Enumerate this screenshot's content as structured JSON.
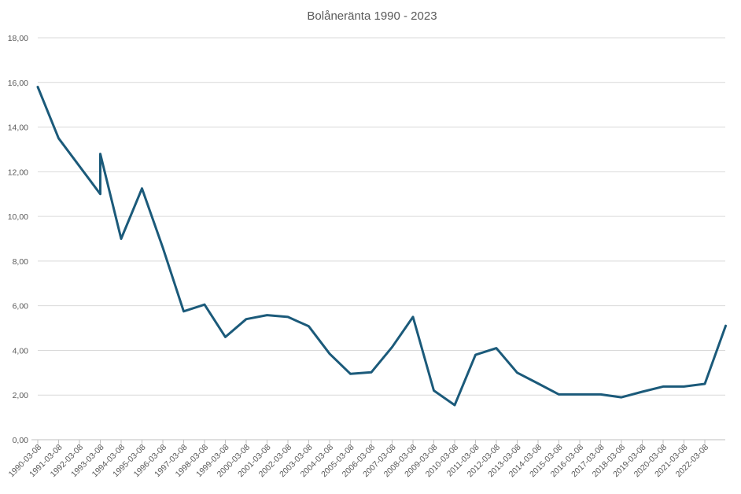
{
  "chart_data": {
    "type": "line",
    "title": "Bolåneränta 1990 - 2023",
    "xlabel": "",
    "ylabel": "",
    "ylim": [
      0,
      18
    ],
    "y_ticks": [
      "0,00",
      "2,00",
      "4,00",
      "6,00",
      "8,00",
      "10,00",
      "12,00",
      "14,00",
      "16,00",
      "18,00"
    ],
    "categories": [
      "1990-03-08",
      "1991-03-08",
      "1992-03-08",
      "1993-03-08",
      "1994-03-08",
      "1995-03-08",
      "1996-03-08",
      "1997-03-08",
      "1998-03-08",
      "1999-03-08",
      "2000-03-08",
      "2001-03-08",
      "2002-03-08",
      "2003-03-08",
      "2004-03-08",
      "2005-03-08",
      "2006-03-08",
      "2007-03-08",
      "2008-03-08",
      "2009-03-08",
      "2010-03-08",
      "2011-03-08",
      "2012-03-08",
      "2013-03-08",
      "2014-03-08",
      "2015-03-08",
      "2016-03-08",
      "2017-03-08",
      "2018-03-08",
      "2019-03-08",
      "2020-03-08",
      "2021-03-08",
      "2022-03-08"
    ],
    "grid": true,
    "legend": "none",
    "line_color": "#1b5a7a",
    "points": [
      {
        "x": 0,
        "y": 15.8
      },
      {
        "x": 1,
        "y": 13.5
      },
      {
        "x": 3,
        "y": 11.0
      },
      {
        "x": 3,
        "y": 12.8
      },
      {
        "x": 4,
        "y": 9.0
      },
      {
        "x": 5,
        "y": 11.25
      },
      {
        "x": 6,
        "y": 8.6
      },
      {
        "x": 7,
        "y": 5.75
      },
      {
        "x": 8,
        "y": 6.05
      },
      {
        "x": 9,
        "y": 4.6
      },
      {
        "x": 10,
        "y": 5.4
      },
      {
        "x": 11,
        "y": 5.58
      },
      {
        "x": 12,
        "y": 5.5
      },
      {
        "x": 13,
        "y": 5.08
      },
      {
        "x": 14,
        "y": 3.85
      },
      {
        "x": 15,
        "y": 2.95
      },
      {
        "x": 16,
        "y": 3.02
      },
      {
        "x": 17,
        "y": 4.15
      },
      {
        "x": 18,
        "y": 5.5
      },
      {
        "x": 19,
        "y": 2.2
      },
      {
        "x": 20,
        "y": 1.55
      },
      {
        "x": 21,
        "y": 3.8
      },
      {
        "x": 22,
        "y": 4.1
      },
      {
        "x": 23,
        "y": 3.0
      },
      {
        "x": 24,
        "y": 2.52
      },
      {
        "x": 25,
        "y": 2.03
      },
      {
        "x": 26,
        "y": 2.03
      },
      {
        "x": 27,
        "y": 2.03
      },
      {
        "x": 28,
        "y": 1.9
      },
      {
        "x": 29,
        "y": 2.15
      },
      {
        "x": 30,
        "y": 2.38
      },
      {
        "x": 31,
        "y": 2.38
      },
      {
        "x": 32,
        "y": 2.5
      },
      {
        "x": 33,
        "y": 5.1
      }
    ]
  }
}
